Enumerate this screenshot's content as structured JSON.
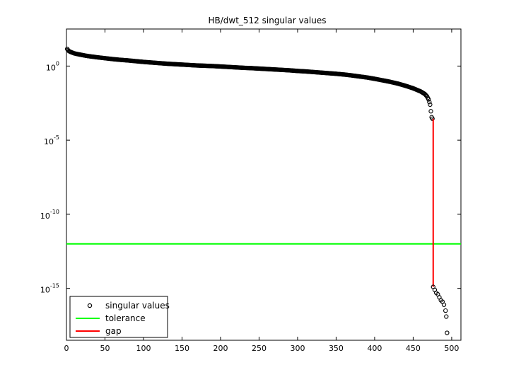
{
  "chart_data": {
    "type": "scatter",
    "title": "HB/dwt_512 singular values",
    "xlabel": "",
    "ylabel": "",
    "xlim": [
      0,
      512
    ],
    "ylim_log10": [
      -18.5,
      2.5
    ],
    "y_scale": "log",
    "grid": false,
    "legend_position": "bottom-left",
    "x_ticks": [
      "0",
      "50",
      "100",
      "150",
      "200",
      "250",
      "300",
      "350",
      "400",
      "450",
      "500"
    ],
    "y_ticks": [
      {
        "base": "10",
        "exp": "0"
      },
      {
        "base": "10",
        "exp": "-5"
      },
      {
        "base": "10",
        "exp": "-10"
      },
      {
        "base": "10",
        "exp": "-15"
      }
    ],
    "series": [
      {
        "name": "singular values",
        "marker": "circle",
        "color": "#000000",
        "points_log10": [
          [
            1,
            1.15
          ],
          [
            2,
            1.08
          ],
          [
            3,
            1.02
          ],
          [
            5,
            0.96
          ],
          [
            8,
            0.9
          ],
          [
            10,
            0.86
          ],
          [
            15,
            0.8
          ],
          [
            20,
            0.75
          ],
          [
            25,
            0.7
          ],
          [
            30,
            0.66
          ],
          [
            40,
            0.59
          ],
          [
            50,
            0.53
          ],
          [
            60,
            0.47
          ],
          [
            70,
            0.42
          ],
          [
            80,
            0.38
          ],
          [
            90,
            0.33
          ],
          [
            100,
            0.28
          ],
          [
            110,
            0.24
          ],
          [
            120,
            0.2
          ],
          [
            130,
            0.16
          ],
          [
            140,
            0.13
          ],
          [
            150,
            0.1
          ],
          [
            160,
            0.07
          ],
          [
            170,
            0.04
          ],
          [
            180,
            0.02
          ],
          [
            190,
            0.0
          ],
          [
            200,
            -0.03
          ],
          [
            210,
            -0.06
          ],
          [
            220,
            -0.09
          ],
          [
            230,
            -0.12
          ],
          [
            240,
            -0.14
          ],
          [
            250,
            -0.17
          ],
          [
            260,
            -0.2
          ],
          [
            270,
            -0.23
          ],
          [
            280,
            -0.26
          ],
          [
            290,
            -0.29
          ],
          [
            300,
            -0.33
          ],
          [
            310,
            -0.36
          ],
          [
            320,
            -0.4
          ],
          [
            330,
            -0.44
          ],
          [
            340,
            -0.48
          ],
          [
            350,
            -0.52
          ],
          [
            360,
            -0.57
          ],
          [
            370,
            -0.63
          ],
          [
            380,
            -0.7
          ],
          [
            390,
            -0.77
          ],
          [
            400,
            -0.86
          ],
          [
            410,
            -0.96
          ],
          [
            420,
            -1.06
          ],
          [
            430,
            -1.18
          ],
          [
            440,
            -1.33
          ],
          [
            450,
            -1.5
          ],
          [
            460,
            -1.72
          ],
          [
            465,
            -1.88
          ],
          [
            468,
            -2.05
          ],
          [
            470,
            -2.25
          ],
          [
            472,
            -2.6
          ],
          [
            473,
            -3.05
          ],
          [
            474,
            -3.45
          ],
          [
            475,
            -3.55
          ],
          [
            476,
            -14.9
          ],
          [
            478,
            -15.1
          ],
          [
            480,
            -15.3
          ],
          [
            482,
            -15.4
          ],
          [
            484,
            -15.6
          ],
          [
            486,
            -15.8
          ],
          [
            488,
            -15.9
          ],
          [
            490,
            -16.1
          ],
          [
            492,
            -16.5
          ],
          [
            493,
            -16.9
          ],
          [
            494,
            -18.0
          ]
        ]
      },
      {
        "name": "tolerance",
        "type": "hline",
        "color": "#00ff00",
        "y_log10": -12.0
      },
      {
        "name": "gap",
        "type": "segment",
        "color": "#ff0000",
        "x": 476,
        "y_log10_range": [
          -3.55,
          -14.9
        ]
      }
    ]
  }
}
